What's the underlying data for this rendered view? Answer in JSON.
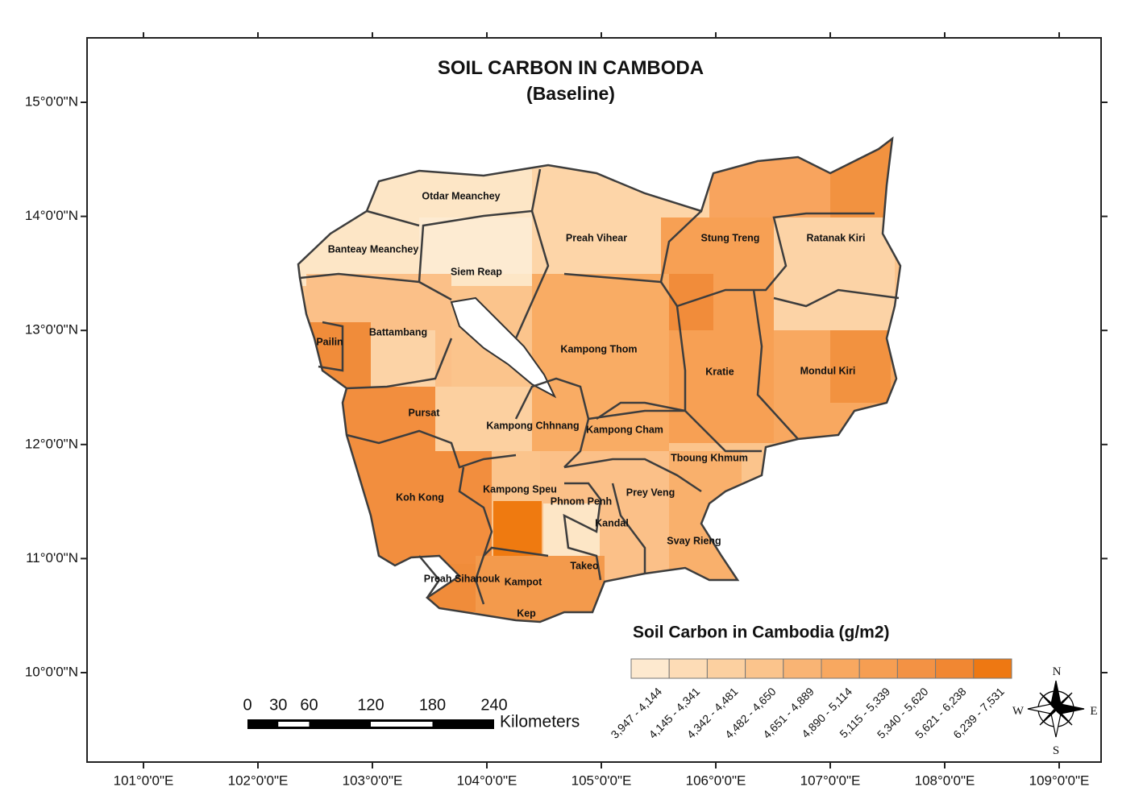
{
  "title": "SOIL CARBON IN CAMBODA",
  "subtitle": "(Baseline)",
  "lat_ticks": [
    "15°0'0\"N",
    "14°0'0\"N",
    "13°0'0\"N",
    "12°0'0\"N",
    "11°0'0\"N",
    "10°0'0\"N"
  ],
  "lon_ticks": [
    "101°0'0\"E",
    "102°0'0\"E",
    "103°0'0\"E",
    "104°0'0\"E",
    "105°0'0\"E",
    "106°0'0\"E",
    "107°0'0\"E",
    "108°0'0\"E",
    "109°0'0\"E"
  ],
  "provinces": [
    "Otdar Meanchey",
    "Banteay Meanchey",
    "Siem Reap",
    "Preah Vihear",
    "Stung Treng",
    "Ratanak Kiri",
    "Battambang",
    "Pailin",
    "Kampong Thom",
    "Kratie",
    "Mondul Kiri",
    "Pursat",
    "Kampong Chhnang",
    "Kampong Cham",
    "Tboung Khmum",
    "Koh Kong",
    "Kampong Speu",
    "Phnom Penh",
    "Prey Veng",
    "Kandal",
    "Svay Rieng",
    "Takeo",
    "Preah Sihanouk",
    "Kampot",
    "Kep"
  ],
  "legend": {
    "title": "Soil Carbon in Cambodia (g/m2)",
    "classes": [
      {
        "label": "3,947 - 4,144",
        "color": "#fde9cf"
      },
      {
        "label": "4,145 - 4,341",
        "color": "#fddcb6"
      },
      {
        "label": "4,342 - 4,481",
        "color": "#fcd0a0"
      },
      {
        "label": "4,482 - 4,650",
        "color": "#fbc48c"
      },
      {
        "label": "4,651 - 4,889",
        "color": "#f9b474"
      },
      {
        "label": "4,890 - 5,114",
        "color": "#f8a860"
      },
      {
        "label": "5,115 - 5,339",
        "color": "#f69e52"
      },
      {
        "label": "5,340 - 5,620",
        "color": "#f39244"
      },
      {
        "label": "5,621 - 6,238",
        "color": "#f18732"
      },
      {
        "label": "6,239 - 7,531",
        "color": "#ee7812"
      }
    ]
  },
  "scale_bar": {
    "ticks": [
      0,
      30,
      60,
      120,
      180,
      240
    ],
    "unit": "Kilometers"
  },
  "compass": {
    "north": "N",
    "east": "E",
    "south": "S",
    "west": "W"
  }
}
